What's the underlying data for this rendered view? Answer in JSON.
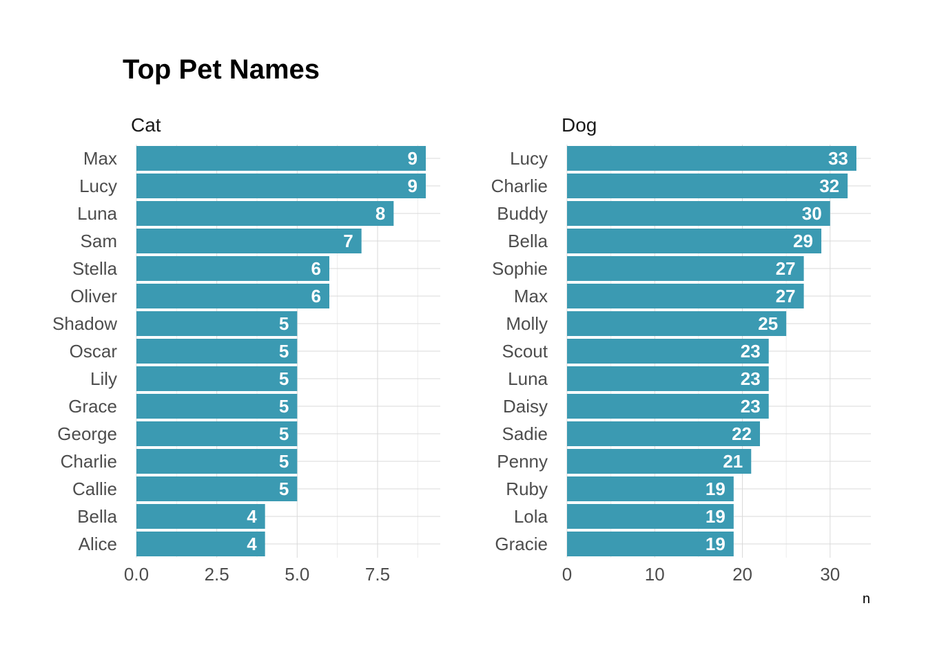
{
  "chart_data": {
    "type": "bar",
    "orientation": "horizontal",
    "title": "Top Pet Names",
    "xlabel": "n",
    "ylabel": "",
    "bar_color": "#3b9ab2",
    "label_color": "#ffffff",
    "grid": true,
    "panels": [
      {
        "name": "Cat",
        "categories": [
          "Max",
          "Lucy",
          "Luna",
          "Sam",
          "Stella",
          "Oliver",
          "Shadow",
          "Oscar",
          "Lily",
          "Grace",
          "George",
          "Charlie",
          "Callie",
          "Bella",
          "Alice"
        ],
        "values": [
          9,
          9,
          8,
          7,
          6,
          6,
          5,
          5,
          5,
          5,
          5,
          5,
          5,
          4,
          4
        ],
        "xlim": [
          0,
          9.45
        ],
        "ticks": [
          0,
          2.5,
          5,
          7.5
        ],
        "tick_labels": [
          "0.0",
          "2.5",
          "5.0",
          "7.5"
        ]
      },
      {
        "name": "Dog",
        "categories": [
          "Lucy",
          "Charlie",
          "Buddy",
          "Bella",
          "Sophie",
          "Max",
          "Molly",
          "Scout",
          "Luna",
          "Daisy",
          "Sadie",
          "Penny",
          "Ruby",
          "Lola",
          "Gracie"
        ],
        "values": [
          33,
          32,
          30,
          29,
          27,
          27,
          25,
          23,
          23,
          23,
          22,
          21,
          19,
          19,
          19
        ],
        "xlim": [
          0,
          34.65
        ],
        "ticks": [
          0,
          10,
          20,
          30
        ],
        "tick_labels": [
          "0",
          "10",
          "20",
          "30"
        ]
      }
    ]
  }
}
